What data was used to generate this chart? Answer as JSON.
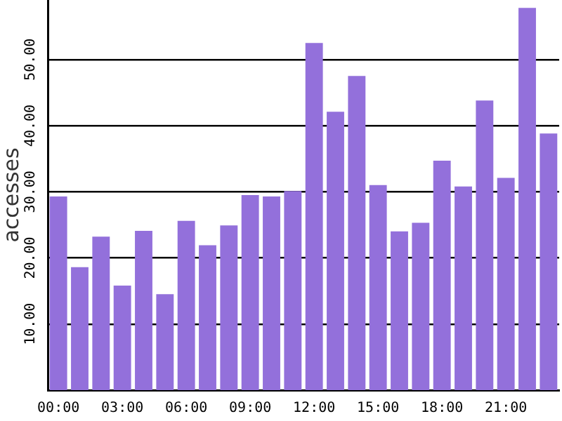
{
  "chart_data": {
    "type": "bar",
    "ylabel": "accesses",
    "categories": [
      "00:00",
      null,
      null,
      "03:00",
      null,
      null,
      "06:00",
      null,
      null,
      "09:00",
      null,
      null,
      "12:00",
      null,
      null,
      "15:00",
      null,
      null,
      "18:00",
      null,
      null,
      "21:00",
      null,
      null
    ],
    "values": [
      29.3,
      18.6,
      23.2,
      15.8,
      24.1,
      14.5,
      25.6,
      21.9,
      24.9,
      29.5,
      29.3,
      30.1,
      52.5,
      42.1,
      47.5,
      31.0,
      24.0,
      25.3,
      34.7,
      30.8,
      43.8,
      32.1,
      57.8,
      38.8
    ],
    "color": "#9370db",
    "ylim": [
      0,
      59
    ],
    "yticks": [
      {
        "value": 10,
        "label": "10.00"
      },
      {
        "value": 20,
        "label": "20.00"
      },
      {
        "value": 30,
        "label": "30.00"
      },
      {
        "value": 40,
        "label": "40.00"
      },
      {
        "value": 50,
        "label": "50.00"
      }
    ],
    "grid": "y",
    "legend": false
  }
}
